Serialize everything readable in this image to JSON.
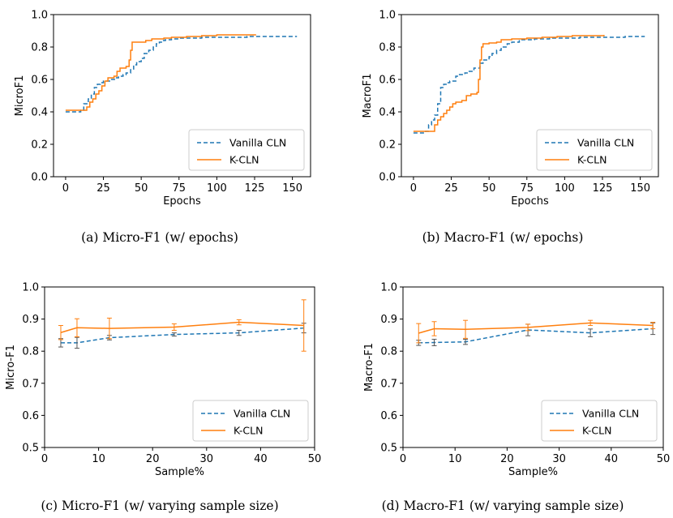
{
  "colors": {
    "vanilla": "#1f77b4",
    "kcln": "#ff7f0e",
    "axis": "#000000",
    "legend_border": "#cccccc"
  },
  "chart_data": [
    {
      "id": "a",
      "type": "line",
      "caption": "(a) Micro-F1 (w/ epochs)",
      "xlabel": "Epochs",
      "ylabel": "MicroF1",
      "xlim": [
        -8,
        162
      ],
      "ylim": [
        0,
        1.0
      ],
      "xticks": [
        0,
        25,
        50,
        75,
        100,
        125,
        150
      ],
      "yticks": [
        0.0,
        0.2,
        0.4,
        0.6,
        0.8,
        1.0
      ],
      "ytick_labels": [
        "0.0",
        "0.2",
        "0.4",
        "0.6",
        "0.8",
        "1.0"
      ],
      "legend": "lower-right",
      "series": [
        {
          "name": "Vanilla CLN",
          "style": "dashed",
          "step": true,
          "x": [
            0,
            10,
            12,
            15,
            17,
            19,
            21,
            23,
            25,
            30,
            33,
            35,
            38,
            40,
            43,
            45,
            47,
            50,
            52,
            55,
            58,
            60,
            62,
            64,
            66,
            70,
            75,
            80,
            90,
            100,
            110,
            120,
            130,
            140,
            153
          ],
          "y": [
            0.4,
            0.41,
            0.45,
            0.48,
            0.51,
            0.55,
            0.57,
            0.58,
            0.59,
            0.6,
            0.61,
            0.62,
            0.63,
            0.64,
            0.66,
            0.69,
            0.71,
            0.73,
            0.76,
            0.78,
            0.8,
            0.82,
            0.83,
            0.84,
            0.845,
            0.85,
            0.855,
            0.855,
            0.86,
            0.86,
            0.86,
            0.865,
            0.865,
            0.865,
            0.865
          ]
        },
        {
          "name": "K-CLN",
          "style": "solid",
          "step": true,
          "x": [
            0,
            12,
            14,
            16,
            18,
            20,
            22,
            24,
            26,
            28,
            32,
            34,
            36,
            38,
            40,
            42,
            43,
            44,
            46,
            48,
            50,
            53,
            57,
            60,
            65,
            70,
            80,
            90,
            100,
            110,
            126
          ],
          "y": [
            0.41,
            0.41,
            0.43,
            0.46,
            0.48,
            0.51,
            0.53,
            0.56,
            0.59,
            0.61,
            0.62,
            0.65,
            0.67,
            0.67,
            0.68,
            0.72,
            0.78,
            0.83,
            0.83,
            0.83,
            0.83,
            0.84,
            0.85,
            0.85,
            0.855,
            0.86,
            0.865,
            0.87,
            0.875,
            0.875,
            0.875
          ]
        }
      ]
    },
    {
      "id": "b",
      "type": "line",
      "caption": "(b) Macro-F1 (w/ epochs)",
      "xlabel": "Epochs",
      "ylabel": "MacroF1",
      "xlim": [
        -8,
        162
      ],
      "ylim": [
        0,
        1.0
      ],
      "xticks": [
        0,
        25,
        50,
        75,
        100,
        125,
        150
      ],
      "yticks": [
        0.0,
        0.2,
        0.4,
        0.6,
        0.8,
        1.0
      ],
      "ytick_labels": [
        "0.0",
        "0.2",
        "0.4",
        "0.6",
        "0.8",
        "1.0"
      ],
      "legend": "lower-right",
      "series": [
        {
          "name": "Vanilla CLN",
          "style": "dashed",
          "step": true,
          "x": [
            0,
            8,
            10,
            12,
            14,
            16,
            18,
            20,
            22,
            24,
            28,
            30,
            34,
            36,
            40,
            44,
            46,
            50,
            52,
            55,
            58,
            62,
            65,
            70,
            80,
            90,
            100,
            110,
            120,
            140,
            153
          ],
          "y": [
            0.27,
            0.28,
            0.32,
            0.35,
            0.38,
            0.45,
            0.55,
            0.57,
            0.58,
            0.59,
            0.62,
            0.63,
            0.64,
            0.65,
            0.67,
            0.7,
            0.72,
            0.74,
            0.76,
            0.78,
            0.8,
            0.82,
            0.83,
            0.845,
            0.85,
            0.855,
            0.855,
            0.86,
            0.86,
            0.865,
            0.865
          ]
        },
        {
          "name": "K-CLN",
          "style": "solid",
          "step": true,
          "x": [
            0,
            13,
            14,
            16,
            18,
            20,
            22,
            24,
            26,
            28,
            30,
            32,
            35,
            38,
            40,
            42,
            43,
            44,
            45,
            46,
            50,
            55,
            58,
            65,
            75,
            85,
            95,
            105,
            126
          ],
          "y": [
            0.28,
            0.28,
            0.32,
            0.35,
            0.37,
            0.39,
            0.41,
            0.43,
            0.45,
            0.46,
            0.46,
            0.47,
            0.5,
            0.51,
            0.51,
            0.52,
            0.6,
            0.72,
            0.8,
            0.82,
            0.825,
            0.83,
            0.845,
            0.85,
            0.855,
            0.86,
            0.865,
            0.87,
            0.875
          ]
        }
      ]
    },
    {
      "id": "c",
      "type": "line",
      "caption": "(c) Micro-F1 (w/ varying sample size)",
      "xlabel": "Sample%",
      "ylabel": "Micro-F1",
      "xlim": [
        0,
        50
      ],
      "ylim": [
        0.5,
        1.0
      ],
      "xticks": [
        0,
        10,
        20,
        30,
        40,
        50
      ],
      "yticks": [
        0.5,
        0.6,
        0.7,
        0.8,
        0.9,
        1.0
      ],
      "ytick_labels": [
        "0.5",
        "0.6",
        "0.7",
        "0.8",
        "0.9",
        "1.0"
      ],
      "legend": "lower-right",
      "series": [
        {
          "name": "Vanilla CLN",
          "style": "dashed",
          "x": [
            3,
            6,
            12,
            24,
            36,
            48
          ],
          "y": [
            0.826,
            0.826,
            0.842,
            0.852,
            0.857,
            0.872
          ],
          "err": [
            0.013,
            0.017,
            0.007,
            0.005,
            0.008,
            0.015
          ]
        },
        {
          "name": "K-CLN",
          "style": "solid",
          "x": [
            3,
            6,
            12,
            24,
            36,
            48
          ],
          "y": [
            0.858,
            0.873,
            0.871,
            0.875,
            0.89,
            0.88
          ],
          "err": [
            0.022,
            0.028,
            0.032,
            0.01,
            0.008,
            0.08
          ]
        }
      ]
    },
    {
      "id": "d",
      "type": "line",
      "caption": "(d) Macro-F1 (w/ varying sample size)",
      "xlabel": "Sample%",
      "ylabel": "Macro-F1",
      "xlim": [
        0,
        50
      ],
      "ylim": [
        0.5,
        1.0
      ],
      "xticks": [
        0,
        10,
        20,
        30,
        40,
        50
      ],
      "yticks": [
        0.5,
        0.6,
        0.7,
        0.8,
        0.9,
        1.0
      ],
      "ytick_labels": [
        "0.5",
        "0.6",
        "0.7",
        "0.8",
        "0.9",
        "1.0"
      ],
      "legend": "lower-right",
      "series": [
        {
          "name": "Vanilla CLN",
          "style": "dashed",
          "x": [
            3,
            6,
            12,
            24,
            36,
            48
          ],
          "y": [
            0.826,
            0.827,
            0.829,
            0.866,
            0.857,
            0.87
          ],
          "err": [
            0.008,
            0.01,
            0.008,
            0.018,
            0.012,
            0.018
          ]
        },
        {
          "name": "K-CLN",
          "style": "solid",
          "x": [
            3,
            6,
            12,
            24,
            36,
            48
          ],
          "y": [
            0.856,
            0.87,
            0.868,
            0.874,
            0.888,
            0.88
          ],
          "err": [
            0.03,
            0.022,
            0.028,
            0.01,
            0.008,
            0.01
          ]
        }
      ]
    }
  ]
}
